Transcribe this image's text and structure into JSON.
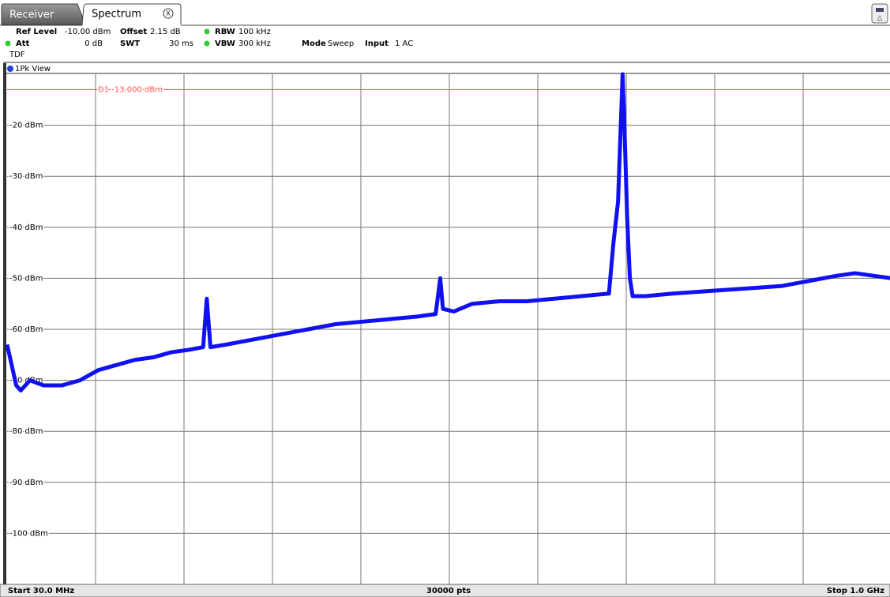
{
  "tabs": [
    "Receiver",
    "Spectrum"
  ],
  "settings": {
    "ref_level_label": "Ref Level",
    "ref_level": "-10.00 dBm",
    "offset_label": "Offset",
    "offset": "2.15 dB",
    "rbw_label": "RBW",
    "rbw": "100 kHz",
    "att_label": "Att",
    "att": "0 dB",
    "swt_label": "SWT",
    "swt": "30 ms",
    "vbw_label": "VBW",
    "vbw": "300 kHz",
    "mode_label": "Mode",
    "mode": "Sweep",
    "input_label": "Input",
    "input": "1 AC",
    "tdf": "TDF"
  },
  "view_label": "1Pk View",
  "footer": {
    "start": "Start 30.0 MHz",
    "points": "30000 pts",
    "stop": "Stop 1.0 GHz"
  },
  "chart_data": {
    "type": "line",
    "xlim": [
      30,
      1000
    ],
    "ylim": [
      -110,
      -10
    ],
    "yticks": [
      {
        "value": -20,
        "label": "-20 dBm"
      },
      {
        "value": -30,
        "label": "-30 dBm"
      },
      {
        "value": -40,
        "label": "-40 dBm"
      },
      {
        "value": -50,
        "label": "-50 dBm"
      },
      {
        "value": -60,
        "label": "-60 dBm"
      },
      {
        "value": -70,
        "label": "-70 dBm"
      },
      {
        "value": -80,
        "label": "-80 dBm"
      },
      {
        "value": -90,
        "label": "-90 dBm"
      },
      {
        "value": -100,
        "label": "-100 dBm"
      }
    ],
    "grid": true,
    "display_line": {
      "label": "D1 -13.000 dBm",
      "value": -13,
      "color": "#ff5050"
    },
    "series": [
      {
        "color": "#1010f0",
        "x": [
          30,
          35,
          40,
          45,
          55,
          70,
          90,
          110,
          130,
          150,
          170,
          190,
          210,
          230,
          245,
          249,
          253,
          270,
          300,
          330,
          360,
          390,
          420,
          450,
          480,
          500,
          505,
          508,
          520,
          540,
          570,
          600,
          630,
          660,
          690,
          695,
          700,
          703,
          705,
          707,
          710,
          713,
          716,
          730,
          760,
          800,
          840,
          880,
          910,
          940,
          960,
          980,
          1000
        ],
        "values": [
          -63,
          -67,
          -71,
          -72,
          -70,
          -71,
          -71,
          -70,
          -68,
          -67,
          -66,
          -65.5,
          -64.5,
          -64,
          -63.5,
          -54,
          -63.5,
          -63,
          -62,
          -61,
          -60,
          -59,
          -58.5,
          -58,
          -57.5,
          -57,
          -50,
          -56,
          -56.5,
          -55,
          -54.5,
          -54.5,
          -54,
          -53.5,
          -53,
          -43,
          -35,
          -20,
          -10,
          -20,
          -38,
          -50,
          -53.5,
          -53.5,
          -53,
          -52.5,
          -52,
          -51.5,
          -50.5,
          -49.5,
          -49,
          -49.5,
          -50
        ]
      }
    ]
  }
}
